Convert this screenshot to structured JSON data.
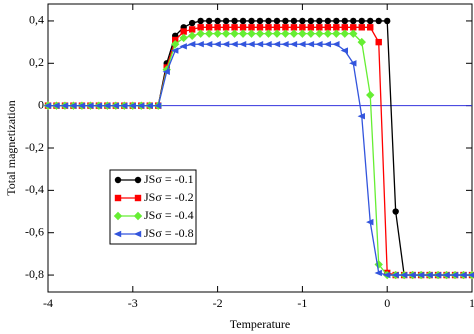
{
  "chart_data": {
    "type": "line",
    "x_label": "Temperature",
    "y_label": "Total magnetization",
    "x": [
      -4,
      -3.9,
      -3.8,
      -3.7,
      -3.6,
      -3.5,
      -3.4,
      -3.3,
      -3.2,
      -3.1,
      -3,
      -2.9,
      -2.8,
      -2.7,
      -2.6,
      -2.5,
      -2.4,
      -2.3,
      -2.2,
      -2.1,
      -2,
      -1.9,
      -1.8,
      -1.7,
      -1.6,
      -1.5,
      -1.4,
      -1.3,
      -1.2,
      -1.1,
      -1,
      -0.9,
      -0.8,
      -0.7,
      -0.6,
      -0.5,
      -0.4,
      -0.3,
      -0.2,
      -0.1,
      0,
      0.1,
      0.2,
      0.3,
      0.4,
      0.5,
      0.6,
      0.7,
      0.8,
      0.9,
      1
    ],
    "series": [
      {
        "name": "JSσ = -0.1",
        "color": "#000000",
        "marker": "circle",
        "values": [
          0,
          0,
          0,
          0,
          0,
          0,
          0,
          0,
          0,
          0,
          0,
          0,
          0,
          0,
          0.2,
          0.33,
          0.37,
          0.39,
          0.4,
          0.4,
          0.4,
          0.4,
          0.4,
          0.4,
          0.4,
          0.4,
          0.4,
          0.4,
          0.4,
          0.4,
          0.4,
          0.4,
          0.4,
          0.4,
          0.4,
          0.4,
          0.4,
          0.4,
          0.4,
          0.4,
          0.4,
          -0.5,
          -0.8,
          -0.8,
          -0.8,
          -0.8,
          -0.8,
          -0.8,
          -0.8,
          -0.8,
          -0.8
        ]
      },
      {
        "name": "JSσ = -0.2",
        "color": "#ff0000",
        "marker": "square",
        "values": [
          0,
          0,
          0,
          0,
          0,
          0,
          0,
          0,
          0,
          0,
          0,
          0,
          0,
          0,
          0.18,
          0.31,
          0.35,
          0.36,
          0.37,
          0.37,
          0.37,
          0.37,
          0.37,
          0.37,
          0.37,
          0.37,
          0.37,
          0.37,
          0.37,
          0.37,
          0.37,
          0.37,
          0.37,
          0.37,
          0.37,
          0.37,
          0.37,
          0.37,
          0.37,
          0.3,
          -0.79,
          -0.8,
          -0.8,
          -0.8,
          -0.8,
          -0.8,
          -0.8,
          -0.8,
          -0.8,
          -0.8,
          -0.8
        ]
      },
      {
        "name": "JSσ = -0.4",
        "color": "#66ee33",
        "marker": "diamond",
        "values": [
          0,
          0,
          0,
          0,
          0,
          0,
          0,
          0,
          0,
          0,
          0,
          0,
          0,
          0,
          0.17,
          0.29,
          0.32,
          0.33,
          0.34,
          0.34,
          0.34,
          0.34,
          0.34,
          0.34,
          0.34,
          0.34,
          0.34,
          0.34,
          0.34,
          0.34,
          0.34,
          0.34,
          0.34,
          0.34,
          0.34,
          0.34,
          0.34,
          0.3,
          0.05,
          -0.75,
          -0.8,
          -0.8,
          -0.8,
          -0.8,
          -0.8,
          -0.8,
          -0.8,
          -0.8,
          -0.8,
          -0.8,
          -0.8
        ]
      },
      {
        "name": "JSσ = -0.8",
        "color": "#3355dd",
        "marker": "triangle-left",
        "values": [
          0,
          0,
          0,
          0,
          0,
          0,
          0,
          0,
          0,
          0,
          0,
          0,
          0,
          0,
          0.16,
          0.26,
          0.28,
          0.29,
          0.29,
          0.29,
          0.29,
          0.29,
          0.29,
          0.29,
          0.29,
          0.29,
          0.29,
          0.29,
          0.29,
          0.29,
          0.29,
          0.29,
          0.29,
          0.29,
          0.29,
          0.26,
          0.2,
          -0.05,
          -0.55,
          -0.79,
          -0.8,
          -0.8,
          -0.8,
          -0.8,
          -0.8,
          -0.8,
          -0.8,
          -0.8,
          -0.8,
          -0.8,
          -0.8
        ]
      }
    ],
    "reference_line": {
      "value": 0,
      "color": "#3333dd"
    },
    "xlim": [
      -4,
      1
    ],
    "xticks": [
      -4,
      -3,
      -2,
      -1,
      0,
      1
    ],
    "ylim": [
      -0.88,
      0.48
    ],
    "yticks": [
      {
        "value": 0.4,
        "label": "0,4"
      },
      {
        "value": 0.2,
        "label": "0,2"
      },
      0,
      {
        "value": -0.2,
        "label": "-0,2"
      },
      {
        "value": -0.4,
        "label": "-0,4"
      },
      {
        "value": -0.6,
        "label": "-0,6"
      },
      {
        "value": -0.8,
        "label": "-0,8"
      }
    ],
    "grid": false
  }
}
